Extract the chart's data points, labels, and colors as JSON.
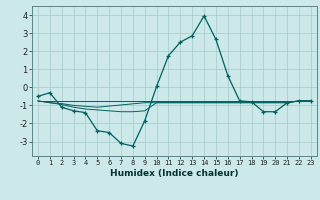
{
  "xlabel": "Humidex (Indice chaleur)",
  "background_color": "#cde8e8",
  "grid_color": "#aacece",
  "line_color": "#006060",
  "xlim": [
    -0.5,
    23.5
  ],
  "ylim": [
    -3.8,
    4.5
  ],
  "yticks": [
    -3,
    -2,
    -1,
    0,
    1,
    2,
    3,
    4
  ],
  "xticks": [
    0,
    1,
    2,
    3,
    4,
    5,
    6,
    7,
    8,
    9,
    10,
    11,
    12,
    13,
    14,
    15,
    16,
    17,
    18,
    19,
    20,
    21,
    22,
    23
  ],
  "main_series": [
    [
      0,
      -0.5
    ],
    [
      1,
      -0.3
    ],
    [
      2,
      -1.1
    ],
    [
      3,
      -1.3
    ],
    [
      4,
      -1.4
    ],
    [
      5,
      -2.4
    ],
    [
      6,
      -2.5
    ],
    [
      7,
      -3.1
    ],
    [
      8,
      -3.25
    ],
    [
      9,
      -1.85
    ],
    [
      10,
      0.05
    ],
    [
      11,
      1.75
    ],
    [
      12,
      2.5
    ],
    [
      13,
      2.85
    ],
    [
      14,
      3.95
    ],
    [
      15,
      2.65
    ],
    [
      16,
      0.65
    ],
    [
      17,
      -0.75
    ],
    [
      18,
      -0.8
    ],
    [
      19,
      -1.35
    ],
    [
      20,
      -1.35
    ],
    [
      21,
      -0.85
    ],
    [
      22,
      -0.75
    ],
    [
      23,
      -0.75
    ]
  ],
  "flat_line1": [
    [
      0,
      -0.75
    ],
    [
      2,
      -0.95
    ],
    [
      3,
      -1.1
    ],
    [
      4,
      -1.2
    ],
    [
      5,
      -1.25
    ],
    [
      6,
      -1.3
    ],
    [
      7,
      -1.35
    ],
    [
      8,
      -1.35
    ],
    [
      9,
      -1.3
    ],
    [
      10,
      -0.85
    ],
    [
      11,
      -0.85
    ],
    [
      12,
      -0.85
    ],
    [
      13,
      -0.85
    ],
    [
      14,
      -0.85
    ],
    [
      15,
      -0.85
    ],
    [
      16,
      -0.85
    ],
    [
      17,
      -0.85
    ],
    [
      18,
      -0.85
    ],
    [
      19,
      -0.85
    ],
    [
      20,
      -0.85
    ],
    [
      21,
      -0.85
    ],
    [
      22,
      -0.75
    ],
    [
      23,
      -0.75
    ]
  ],
  "flat_line2": [
    [
      0,
      -0.75
    ],
    [
      1,
      -0.85
    ],
    [
      2,
      -0.9
    ],
    [
      3,
      -1.0
    ],
    [
      4,
      -1.05
    ],
    [
      5,
      -1.1
    ],
    [
      9,
      -0.85
    ],
    [
      10,
      -0.85
    ],
    [
      11,
      -0.85
    ],
    [
      12,
      -0.85
    ],
    [
      13,
      -0.85
    ],
    [
      14,
      -0.85
    ],
    [
      15,
      -0.85
    ],
    [
      16,
      -0.85
    ],
    [
      17,
      -0.85
    ],
    [
      18,
      -0.85
    ],
    [
      19,
      -0.85
    ],
    [
      20,
      -0.85
    ],
    [
      21,
      -0.85
    ],
    [
      22,
      -0.75
    ],
    [
      23,
      -0.75
    ]
  ],
  "flat_line3": [
    [
      0,
      -0.75
    ],
    [
      23,
      -0.75
    ]
  ]
}
